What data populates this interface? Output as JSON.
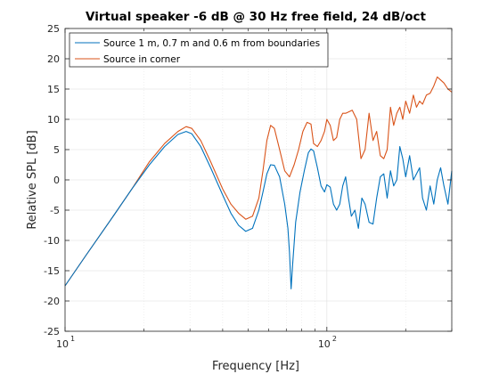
{
  "colors": {
    "series_blue": "#0072BD",
    "series_orange": "#D95319",
    "grid": "#e6e6e6",
    "axes": "#262626",
    "background": "#ffffff"
  },
  "chart_data": {
    "type": "line",
    "title": "Virtual speaker -6 dB @ 30 Hz free field, 24 dB/oct",
    "xlabel": "Frequency [Hz]",
    "ylabel": "Relative SPL [dB]",
    "xscale": "log",
    "xlim": [
      10,
      300
    ],
    "ylim": [
      -25,
      25
    ],
    "grid": true,
    "legend_location": "top-left",
    "xticks": [
      {
        "value": 10,
        "base": "10",
        "exp": "1"
      },
      {
        "value": 100,
        "base": "10",
        "exp": "2"
      }
    ],
    "yticks": [
      {
        "value": -25,
        "label": "-25"
      },
      {
        "value": -20,
        "label": "-20"
      },
      {
        "value": -15,
        "label": "-15"
      },
      {
        "value": -10,
        "label": "-10"
      },
      {
        "value": -5,
        "label": "-5"
      },
      {
        "value": 0,
        "label": "0"
      },
      {
        "value": 5,
        "label": "5"
      },
      {
        "value": 10,
        "label": "10"
      },
      {
        "value": 15,
        "label": "15"
      },
      {
        "value": 20,
        "label": "20"
      },
      {
        "value": 25,
        "label": "25"
      }
    ],
    "series": [
      {
        "name": "Source 1 m, 0.7 m and 0.6 m from boundaries",
        "color": "#0072BD",
        "x": [
          10,
          12,
          15,
          18,
          21,
          24,
          27,
          29,
          30.5,
          33,
          36,
          40,
          43,
          46,
          49,
          52,
          55,
          57,
          59,
          61,
          63,
          66,
          69,
          71,
          72,
          73,
          74,
          76,
          79,
          82,
          85,
          87,
          89,
          92,
          95,
          98,
          100,
          103,
          106,
          109,
          112,
          115,
          118,
          121,
          124,
          128,
          132,
          136,
          140,
          145,
          150,
          155,
          160,
          165,
          170,
          175,
          180,
          185,
          190,
          195,
          200,
          207,
          214,
          220,
          226,
          232,
          240,
          248,
          256,
          264,
          272,
          280,
          290,
          300
        ],
        "y": [
          -17.5,
          -12.5,
          -6.5,
          -1.5,
          2.5,
          5.5,
          7.5,
          8,
          7.6,
          5.5,
          2,
          -2.5,
          -5.5,
          -7.5,
          -8.5,
          -8,
          -5,
          -2,
          1,
          2.5,
          2.4,
          0.5,
          -4,
          -8,
          -12,
          -18,
          -14,
          -7,
          -2,
          1.5,
          4.5,
          5.1,
          4.8,
          2,
          -1,
          -2,
          -0.8,
          -1.2,
          -4,
          -5,
          -4,
          -1,
          0.5,
          -3,
          -6,
          -5,
          -8,
          -3,
          -4,
          -7,
          -7.3,
          -3,
          0.5,
          1,
          -3,
          1.5,
          -1,
          0,
          5.5,
          3.5,
          0.5,
          4,
          0,
          1,
          2,
          -3,
          -5,
          -1,
          -4,
          0,
          2,
          -1,
          -4,
          1.5
        ]
      },
      {
        "name": "Source in corner",
        "color": "#D95319",
        "x": [
          10,
          12,
          15,
          18,
          21,
          24,
          27,
          29,
          30.5,
          33,
          36,
          40,
          43,
          46,
          49,
          52,
          55,
          57,
          59,
          61,
          63,
          66,
          69,
          72,
          75,
          78,
          81,
          84,
          87,
          89,
          92,
          95,
          98,
          100,
          103,
          106,
          109,
          112,
          115,
          118,
          121,
          125,
          130,
          135,
          140,
          145,
          150,
          155,
          160,
          165,
          170,
          175,
          180,
          185,
          190,
          195,
          200,
          207,
          214,
          220,
          226,
          232,
          240,
          248,
          256,
          264,
          272,
          280,
          290,
          300
        ],
        "y": [
          -17.5,
          -12.5,
          -6.5,
          -1.5,
          3,
          6,
          8,
          8.8,
          8.5,
          6.5,
          3,
          -1.5,
          -4,
          -5.5,
          -6.5,
          -6,
          -3,
          1.5,
          6.5,
          9,
          8.5,
          5,
          1.5,
          0.5,
          2.5,
          5,
          8,
          9.5,
          9.2,
          6,
          5.5,
          6.5,
          8,
          10,
          9,
          6.5,
          7,
          10,
          11,
          11,
          11.2,
          11.5,
          10,
          3.5,
          5,
          11,
          6.5,
          8,
          4,
          3.5,
          5,
          12,
          9,
          11,
          12,
          10,
          13,
          11,
          14,
          12,
          13,
          12.5,
          14,
          14.3,
          15.5,
          17,
          16.5,
          16,
          15,
          14.5
        ]
      }
    ]
  }
}
